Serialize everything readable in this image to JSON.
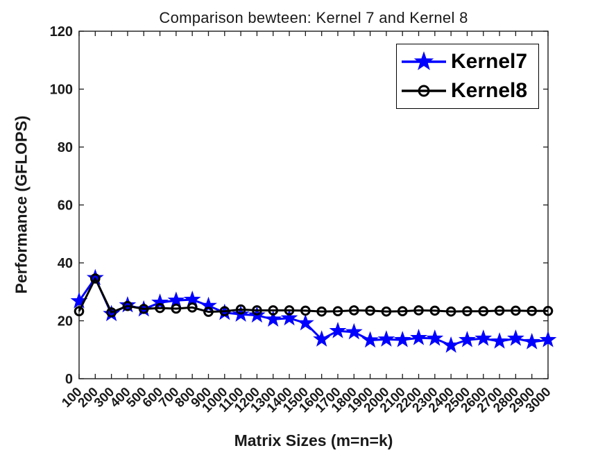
{
  "chart_data": {
    "type": "line",
    "title": "Comparison bewteen: Kernel 7 and Kernel 8",
    "xlabel": "Matrix Sizes (m=n=k)",
    "ylabel": "Performance (GFLOPS)",
    "x_categories": [
      "100",
      "200",
      "300",
      "400",
      "500",
      "600",
      "700",
      "800",
      "900",
      "1000",
      "1100",
      "1200",
      "1300",
      "1400",
      "1500",
      "1600",
      "1700",
      "1800",
      "1900",
      "2000",
      "2100",
      "2200",
      "2300",
      "2400",
      "2500",
      "2600",
      "2700",
      "2800",
      "2900",
      "3000"
    ],
    "xtick_rotation_deg": 45,
    "ylim": [
      0,
      120
    ],
    "yticks": [
      0,
      20,
      40,
      60,
      80,
      100,
      120
    ],
    "grid": false,
    "box": true,
    "axis_color": "#1a1a1a",
    "legend": {
      "position": "top-right-inside",
      "border_color": "#000000",
      "background": "#ffffff"
    },
    "series": [
      {
        "name": "Kernel7",
        "color": "#0000ff",
        "marker": "star",
        "values": [
          26.8,
          34.8,
          22.4,
          25.4,
          24.0,
          26.3,
          27.0,
          27.3,
          25.2,
          22.8,
          22.2,
          21.9,
          20.5,
          20.9,
          19.2,
          13.6,
          16.5,
          16.1,
          13.3,
          13.6,
          13.4,
          14.1,
          13.9,
          11.5,
          13.4,
          13.9,
          12.9,
          13.9,
          12.7,
          13.4
        ]
      },
      {
        "name": "Kernel8",
        "color": "#000000",
        "marker": "circle",
        "values": [
          23.3,
          34.6,
          22.9,
          25.1,
          24.1,
          24.4,
          24.2,
          24.6,
          23.1,
          23.3,
          23.9,
          23.6,
          23.6,
          23.6,
          23.5,
          23.2,
          23.3,
          23.6,
          23.5,
          23.2,
          23.3,
          23.6,
          23.5,
          23.2,
          23.3,
          23.3,
          23.5,
          23.5,
          23.4,
          23.4
        ]
      }
    ]
  }
}
